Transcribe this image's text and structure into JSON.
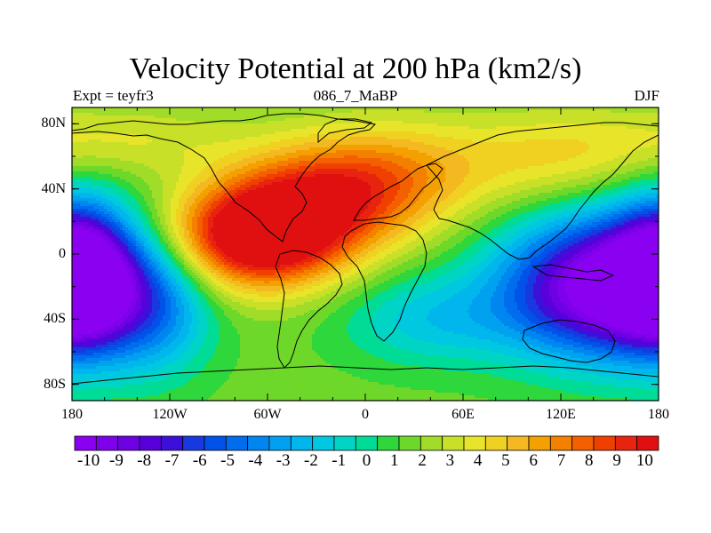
{
  "chart_data": {
    "type": "heatmap",
    "title": "Velocity Potential at 200 hPa (km2/s)",
    "subtitle_left": "Expt = teyfr3",
    "subtitle_center": "086_7_MaBP",
    "subtitle_right": "DJF",
    "x_ticks": [
      "180",
      "120W",
      "60W",
      "0",
      "60E",
      "120E",
      "180"
    ],
    "x_tick_values": [
      -180,
      -120,
      -60,
      0,
      60,
      120,
      180
    ],
    "y_ticks": [
      "80N",
      "40N",
      "0",
      "40S",
      "80S"
    ],
    "y_tick_values": [
      80,
      40,
      0,
      -40,
      -80
    ],
    "xlim": [
      -180,
      180
    ],
    "ylim": [
      -90,
      90
    ],
    "colorbar_labels": [
      "-10",
      "-9",
      "-8",
      "-7",
      "-6",
      "-5",
      "-4",
      "-3",
      "-2",
      "-1",
      "0",
      "1",
      "2",
      "3",
      "4",
      "5",
      "6",
      "7",
      "8",
      "9",
      "10"
    ],
    "colorbar_range": [
      -10.5,
      10.5
    ],
    "colorbar_colors": [
      "#8a00f0",
      "#7f00ea",
      "#6e00e4",
      "#5800dc",
      "#3c10d8",
      "#1838e0",
      "#0052e8",
      "#006cee",
      "#0086f0",
      "#00a2f0",
      "#00b6ec",
      "#00c8e0",
      "#00d4c4",
      "#00dc96",
      "#2ed83c",
      "#6ed82a",
      "#a0dc28",
      "#c8e028",
      "#e8e42a",
      "#f0d020",
      "#f4b820",
      "#f4a000",
      "#f48000",
      "#f46000",
      "#f04000",
      "#e82410",
      "#e01010"
    ],
    "field_extrema": [
      {
        "label": "maximum",
        "lon": -65,
        "lat": 10,
        "value": 10
      },
      {
        "label": "minimum",
        "lon": 150,
        "lat": -20,
        "value": -10
      },
      {
        "label": "minimum",
        "lon": -175,
        "lat": -10,
        "value": -9
      }
    ]
  }
}
